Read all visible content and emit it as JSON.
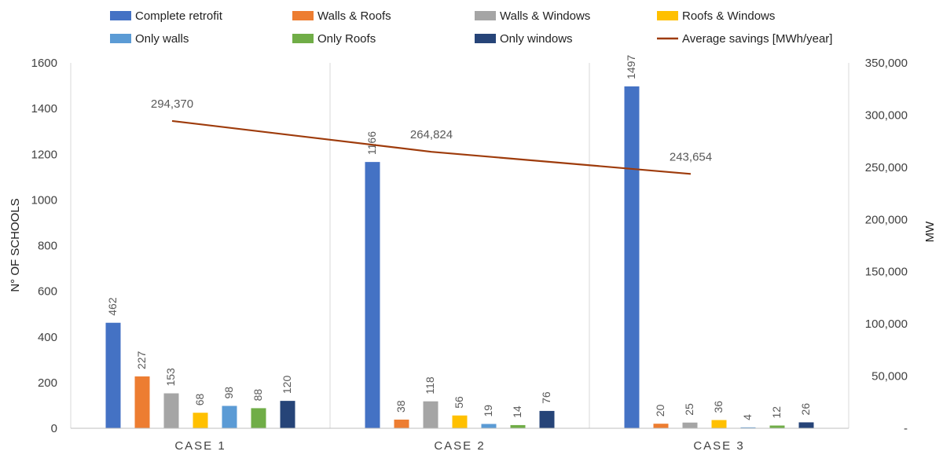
{
  "chart_data": {
    "type": "bar",
    "categories": [
      "CASE 1",
      "CASE 2",
      "CASE 3"
    ],
    "series": [
      {
        "name": "Complete retrofit",
        "color": "#4472C4",
        "values": [
          462,
          1166,
          1497
        ]
      },
      {
        "name": "Walls & Roofs",
        "color": "#ED7D31",
        "values": [
          227,
          38,
          20
        ]
      },
      {
        "name": "Walls & Windows",
        "color": "#A5A5A5",
        "values": [
          153,
          118,
          25
        ]
      },
      {
        "name": "Roofs & Windows",
        "color": "#FFC000",
        "values": [
          68,
          56,
          36
        ]
      },
      {
        "name": "Only walls",
        "color": "#5B9BD5",
        "values": [
          98,
          19,
          4
        ]
      },
      {
        "name": "Only Roofs",
        "color": "#70AD47",
        "values": [
          88,
          14,
          12
        ]
      },
      {
        "name": "Only windows",
        "color": "#264478",
        "values": [
          120,
          76,
          26
        ]
      }
    ],
    "line_series": {
      "name": "Average savings [MWh/year]",
      "color": "#9E3B0B",
      "values": [
        294370,
        264824,
        243654
      ],
      "labels": [
        "294,370",
        "264,824",
        "243,654"
      ],
      "axis": "right"
    },
    "ylabel": "N° OF SCHOOLS",
    "ylabel_right": "MW",
    "ylim": [
      0,
      1600
    ],
    "ylim_right": [
      0,
      350000
    ],
    "yticks": [
      "0",
      "200",
      "400",
      "600",
      "800",
      "1000",
      "1200",
      "1400",
      "1600"
    ],
    "yticks_right": [
      "-",
      "50,000",
      "100,000",
      "150,000",
      "200,000",
      "250,000",
      "300,000",
      "350,000"
    ],
    "legend_position": "top",
    "grid": false
  }
}
